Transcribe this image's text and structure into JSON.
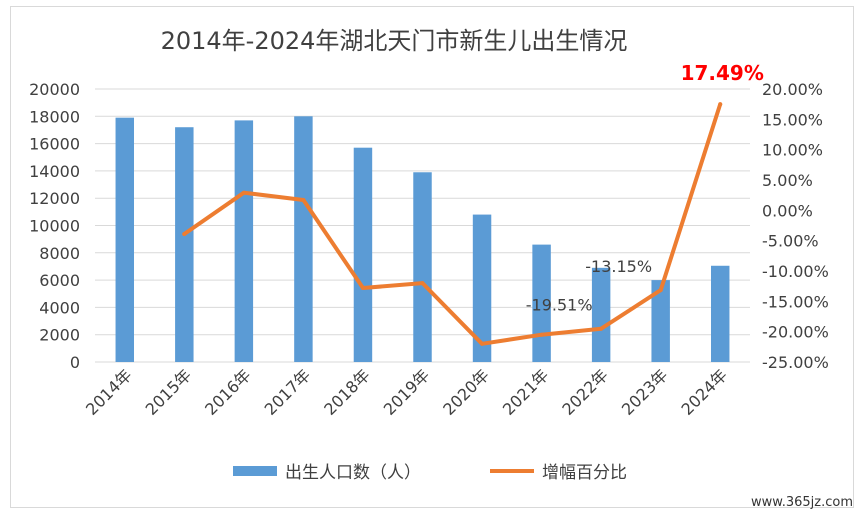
{
  "chart_data": {
    "type": "bar",
    "title": "2014年-2024年湖北天门市新生儿出生情况",
    "categories": [
      "2014年",
      "2015年",
      "2016年",
      "2017年",
      "2018年",
      "2019年",
      "2020年",
      "2021年",
      "2022年",
      "2023年",
      "2024年"
    ],
    "series": [
      {
        "name": "出生人口数（人）",
        "type": "bar",
        "axis": "left",
        "color": "#5b9bd5",
        "values": [
          17900,
          17200,
          17700,
          18000,
          15700,
          13900,
          10800,
          8600,
          6900,
          6000,
          7050
        ]
      },
      {
        "name": "增幅百分比",
        "type": "line",
        "axis": "right",
        "color": "#ed7d31",
        "values": [
          null,
          -3.9,
          2.9,
          1.7,
          -12.8,
          -12.0,
          -22.0,
          -20.5,
          -19.51,
          -13.15,
          17.49
        ]
      }
    ],
    "y_left": {
      "min": 0,
      "max": 20000,
      "step": 2000,
      "ticks": [
        "0",
        "2000",
        "4000",
        "6000",
        "8000",
        "10000",
        "12000",
        "14000",
        "16000",
        "18000",
        "20000"
      ]
    },
    "y_right": {
      "min": -25,
      "max": 20,
      "step": 5,
      "ticks": [
        "-25.00%",
        "-20.00%",
        "-15.00%",
        "-10.00%",
        "-5.00%",
        "0.00%",
        "5.00%",
        "10.00%",
        "15.00%",
        "20.00%"
      ]
    },
    "data_labels": [
      {
        "category": "2022年",
        "series": "增幅百分比",
        "text": "-19.51%"
      },
      {
        "category": "2023年",
        "series": "增幅百分比",
        "text": "-13.15%"
      },
      {
        "category": "2024年",
        "series": "增幅百分比",
        "text": "17.49%",
        "color": "#ff0000"
      }
    ],
    "legend_position": "bottom",
    "grid": true
  },
  "watermark": "www.365jz.com"
}
